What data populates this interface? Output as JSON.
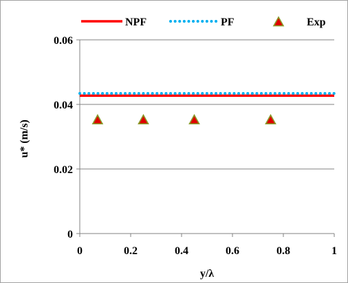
{
  "colors": {
    "npf": "#ff0000",
    "pf": "#00b0f0",
    "exp_fill": "#e00000",
    "exp_edge": "#8a9a2a",
    "grid": "#808080",
    "axis": "#808080",
    "frame": "#a0a0a0"
  },
  "legend": {
    "placement": "top",
    "items": [
      {
        "label": "NPF",
        "style": "solid-line",
        "color_key": "npf"
      },
      {
        "label": "PF",
        "style": "dotted-line",
        "color_key": "pf"
      },
      {
        "label": "Exp",
        "style": "triangle-marker",
        "color_key": "exp_fill"
      }
    ]
  },
  "chart_data": {
    "type": "scatter",
    "title": "",
    "xlabel": "y/λ",
    "ylabel": "u* (m/s)",
    "xlim": [
      0,
      1
    ],
    "ylim": [
      0,
      0.06
    ],
    "xticks": [
      0,
      0.2,
      0.4,
      0.6,
      0.8,
      1
    ],
    "xtick_labels": [
      "0",
      "0.2",
      "0.4",
      "0.6",
      "0.8",
      "1"
    ],
    "yticks": [
      0,
      0.02,
      0.04,
      0.06
    ],
    "ytick_labels": [
      "0",
      "0.02",
      "0.04",
      "0.06"
    ],
    "grid": "horizontal",
    "series": [
      {
        "name": "NPF",
        "kind": "line",
        "line_style": "solid",
        "x": [
          0,
          1
        ],
        "y": [
          0.0427,
          0.0427
        ]
      },
      {
        "name": "PF",
        "kind": "line",
        "line_style": "dotted",
        "x": [
          0,
          1
        ],
        "y": [
          0.0434,
          0.0434
        ]
      },
      {
        "name": "Exp",
        "kind": "marker",
        "marker": "triangle",
        "x": [
          0.07,
          0.25,
          0.45,
          0.75
        ],
        "y": [
          0.0352,
          0.0352,
          0.0352,
          0.0352
        ]
      }
    ]
  }
}
